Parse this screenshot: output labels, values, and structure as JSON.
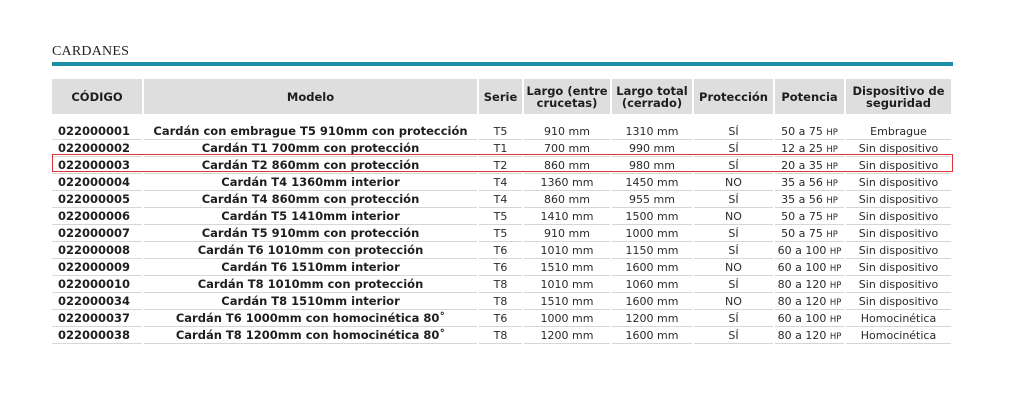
{
  "section_title": "CARDANES",
  "table": {
    "headers": {
      "codigo": "CÓDIGO",
      "modelo": "Modelo",
      "serie": "Serie",
      "largo_crucetas": "Largo (entre crucetas)",
      "largo_total": "Largo total (cerrado)",
      "proteccion": "Protección",
      "potencia": "Potencia",
      "dispositivo": "Dispositivo de seguridad"
    },
    "hp_unit": "HP",
    "rows": [
      {
        "codigo": "022000001",
        "modelo": "Cardán con embrague T5 910mm con protección",
        "serie": "T5",
        "largo_crucetas": "910 mm",
        "largo_total": "1310 mm",
        "proteccion": "SÍ",
        "potencia": "50 a 75",
        "dispositivo": "Embrague"
      },
      {
        "codigo": "022000002",
        "modelo": "Cardán T1 700mm con protección",
        "serie": "T1",
        "largo_crucetas": "700 mm",
        "largo_total": "990 mm",
        "proteccion": "SÍ",
        "potencia": "12 a 25",
        "dispositivo": "Sin dispositivo"
      },
      {
        "codigo": "022000003",
        "modelo": "Cardán T2 860mm con protección",
        "serie": "T2",
        "largo_crucetas": "860 mm",
        "largo_total": "980 mm",
        "proteccion": "SÍ",
        "potencia": "20 a 35",
        "dispositivo": "Sin dispositivo"
      },
      {
        "codigo": "022000004",
        "modelo": "Cardán T4 1360mm interior",
        "serie": "T4",
        "largo_crucetas": "1360 mm",
        "largo_total": "1450 mm",
        "proteccion": "NO",
        "potencia": "35 a 56",
        "dispositivo": "Sin dispositivo"
      },
      {
        "codigo": "022000005",
        "modelo": "Cardán T4 860mm con protección",
        "serie": "T4",
        "largo_crucetas": "860 mm",
        "largo_total": "955 mm",
        "proteccion": "SÍ",
        "potencia": "35 a 56",
        "dispositivo": "Sin dispositivo"
      },
      {
        "codigo": "022000006",
        "modelo": "Cardán T5 1410mm interior",
        "serie": "T5",
        "largo_crucetas": "1410 mm",
        "largo_total": "1500 mm",
        "proteccion": "NO",
        "potencia": "50 a 75",
        "dispositivo": "Sin dispositivo"
      },
      {
        "codigo": "022000007",
        "modelo": "Cardán T5 910mm con protección",
        "serie": "T5",
        "largo_crucetas": "910 mm",
        "largo_total": "1000 mm",
        "proteccion": "SÍ",
        "potencia": "50 a 75",
        "dispositivo": "Sin dispositivo"
      },
      {
        "codigo": "022000008",
        "modelo": "Cardán T6 1010mm con protección",
        "serie": "T6",
        "largo_crucetas": "1010 mm",
        "largo_total": "1150 mm",
        "proteccion": "SÍ",
        "potencia": "60 a 100",
        "dispositivo": "Sin dispositivo"
      },
      {
        "codigo": "022000009",
        "modelo": "Cardán T6 1510mm interior",
        "serie": "T6",
        "largo_crucetas": "1510 mm",
        "largo_total": "1600 mm",
        "proteccion": "NO",
        "potencia": "60 a 100",
        "dispositivo": "Sin dispositivo"
      },
      {
        "codigo": "022000010",
        "modelo": "Cardán T8 1010mm con protección",
        "serie": "T8",
        "largo_crucetas": "1010 mm",
        "largo_total": "1060 mm",
        "proteccion": "SÍ",
        "potencia": "80 a 120",
        "dispositivo": "Sin dispositivo"
      },
      {
        "codigo": "022000034",
        "modelo": "Cardán T8 1510mm interior",
        "serie": "T8",
        "largo_crucetas": "1510 mm",
        "largo_total": "1600 mm",
        "proteccion": "NO",
        "potencia": "80 a 120",
        "dispositivo": "Sin dispositivo"
      },
      {
        "codigo": "022000037",
        "modelo": "Cardán T6 1000mm con homocinética 80˚",
        "serie": "T6",
        "largo_crucetas": "1000 mm",
        "largo_total": "1200 mm",
        "proteccion": "SÍ",
        "potencia": "60 a 100",
        "dispositivo": "Homocinética"
      },
      {
        "codigo": "022000038",
        "modelo": "Cardán T8 1200mm con homocinética 80˚",
        "serie": "T8",
        "largo_crucetas": "1200 mm",
        "largo_total": "1600 mm",
        "proteccion": "SÍ",
        "potencia": "80 a 120",
        "dispositivo": "Homocinética"
      }
    ]
  },
  "highlighted_row_codigo": "022000003",
  "colors": {
    "accent_rule": "#1d8ea6",
    "header_bg": "#dedede",
    "highlight": "#d9363e"
  }
}
